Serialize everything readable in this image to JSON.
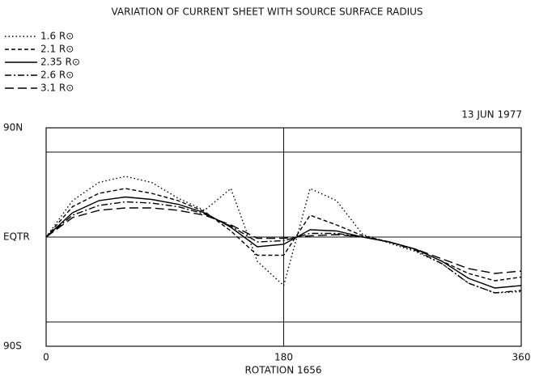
{
  "chart_data": {
    "type": "line",
    "title": "VARIATION OF CURRENT SHEET WITH SOURCE SURFACE RADIUS",
    "annotation": "13 JUN 1977",
    "x_label": "ROTATION 1656",
    "x": [
      0,
      20,
      40,
      60,
      80,
      100,
      120,
      140,
      160,
      180,
      200,
      220,
      240,
      260,
      280,
      300,
      320,
      340,
      360
    ],
    "series": [
      {
        "name": "1.6 R⊙",
        "color": "#000000",
        "style": "dotted",
        "values": [
          0,
          30,
          45,
          50,
          45,
          32,
          22,
          40,
          -20,
          -40,
          40,
          30,
          2,
          -5,
          -12,
          -22,
          -38,
          -46,
          -45
        ]
      },
      {
        "name": "2.1 R⊙",
        "color": "#000000",
        "style": "dashed",
        "values": [
          0,
          25,
          36,
          40,
          36,
          30,
          21,
          5,
          -15,
          -15,
          18,
          10,
          1,
          -4,
          -10,
          -20,
          -30,
          -36,
          -33
        ]
      },
      {
        "name": "2.35 R⊙",
        "color": "#000000",
        "style": "solid",
        "values": [
          0,
          20,
          30,
          33,
          31,
          27,
          20,
          8,
          -8,
          -6,
          6,
          5,
          0,
          -4,
          -10,
          -20,
          -34,
          -42,
          -40
        ]
      },
      {
        "name": "2.6 R⊙",
        "color": "#000000",
        "style": "dashdot",
        "values": [
          0,
          18,
          26,
          29,
          28,
          25,
          19,
          9,
          -4,
          -3,
          3,
          3,
          0,
          -4,
          -11,
          -22,
          -38,
          -46,
          -44
        ]
      },
      {
        "name": "3.1 R⊙",
        "color": "#000000",
        "style": "longdash",
        "values": [
          0,
          16,
          22,
          24,
          24,
          22,
          18,
          10,
          -1,
          -1,
          1,
          2,
          0,
          -4,
          -10,
          -18,
          -26,
          -30,
          -28
        ]
      }
    ],
    "xlim": [
      0,
      360
    ],
    "xticks": [
      0,
      180,
      360
    ],
    "ylim": [
      -90,
      90
    ],
    "yticks": [
      {
        "value": 90,
        "label": "90N"
      },
      {
        "value": 0,
        "label": "EQTR"
      },
      {
        "value": -90,
        "label": "90S"
      }
    ],
    "hlines": [
      70,
      0,
      -70
    ],
    "vlines": [
      180
    ]
  }
}
